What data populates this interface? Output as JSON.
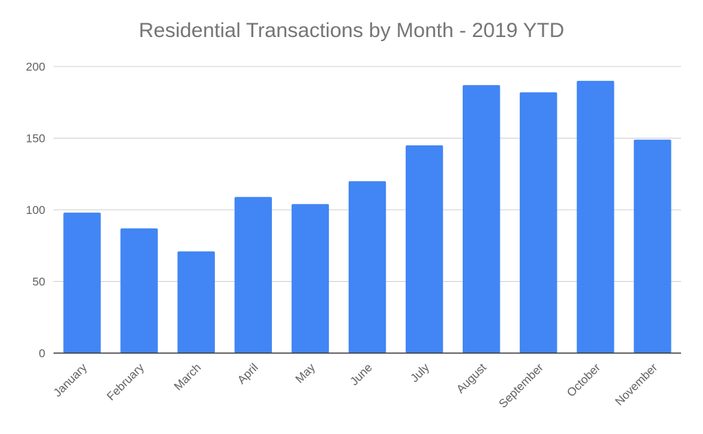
{
  "chart_data": {
    "type": "bar",
    "title": "Residential Transactions by Month - 2019 YTD",
    "xlabel": "",
    "ylabel": "",
    "categories": [
      "January",
      "February",
      "March",
      "April",
      "May",
      "June",
      "July",
      "August",
      "September",
      "October",
      "November"
    ],
    "values": [
      98,
      87,
      71,
      109,
      104,
      120,
      145,
      187,
      182,
      190,
      149
    ],
    "ylim": [
      0,
      200
    ],
    "yticks": [
      0,
      50,
      100,
      150,
      200
    ],
    "grid": true,
    "legend": "none",
    "bar_color": "#4285f4",
    "grid_color": "#cccccc",
    "axis_color": "#333333"
  }
}
